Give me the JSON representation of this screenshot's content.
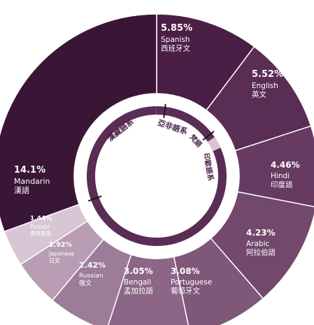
{
  "chart_data": {
    "type": "pie",
    "title": "",
    "slices": [
      {
        "pct": "5.85%",
        "value": 5.85,
        "en": "Spanish",
        "zh": "西班牙文",
        "color": "#4b1f45"
      },
      {
        "pct": "5.52%",
        "value": 5.52,
        "en": "English",
        "zh": "英文",
        "color": "#5a2d55"
      },
      {
        "pct": "4.46%",
        "value": 4.46,
        "en": "Hindi",
        "zh": "印度語",
        "color": "#663a61"
      },
      {
        "pct": "4.23%",
        "value": 4.23,
        "en": "Arabic",
        "zh": "阿拉伯語",
        "color": "#73486d"
      },
      {
        "pct": "3.08%",
        "value": 3.08,
        "en": "Portuguese",
        "zh": "葡萄牙文",
        "color": "#7f5779"
      },
      {
        "pct": "3.05%",
        "value": 3.05,
        "en": "Bengali",
        "zh": "孟加拉語",
        "color": "#8b6686"
      },
      {
        "pct": "2.42%",
        "value": 2.42,
        "en": "Russian",
        "zh": "俄文",
        "color": "#9c7c98"
      },
      {
        "pct": "1.92%",
        "value": 1.92,
        "en": "Japanese",
        "zh": "日文",
        "color": "#b89db4"
      },
      {
        "pct": "1.44%",
        "value": 1.44,
        "en": "Punjabi",
        "zh": "旁遮普語",
        "color": "#d8c6d5"
      },
      {
        "pct": "14.1%",
        "value": 14.1,
        "en": "Mandarin",
        "zh": "漢語",
        "color": "#3a1636"
      }
    ],
    "inner_ring": {
      "color": "#5a2d55",
      "labels": [
        "漢藏語系",
        "亞非語系",
        "梵語",
        "印歐語系"
      ]
    }
  }
}
